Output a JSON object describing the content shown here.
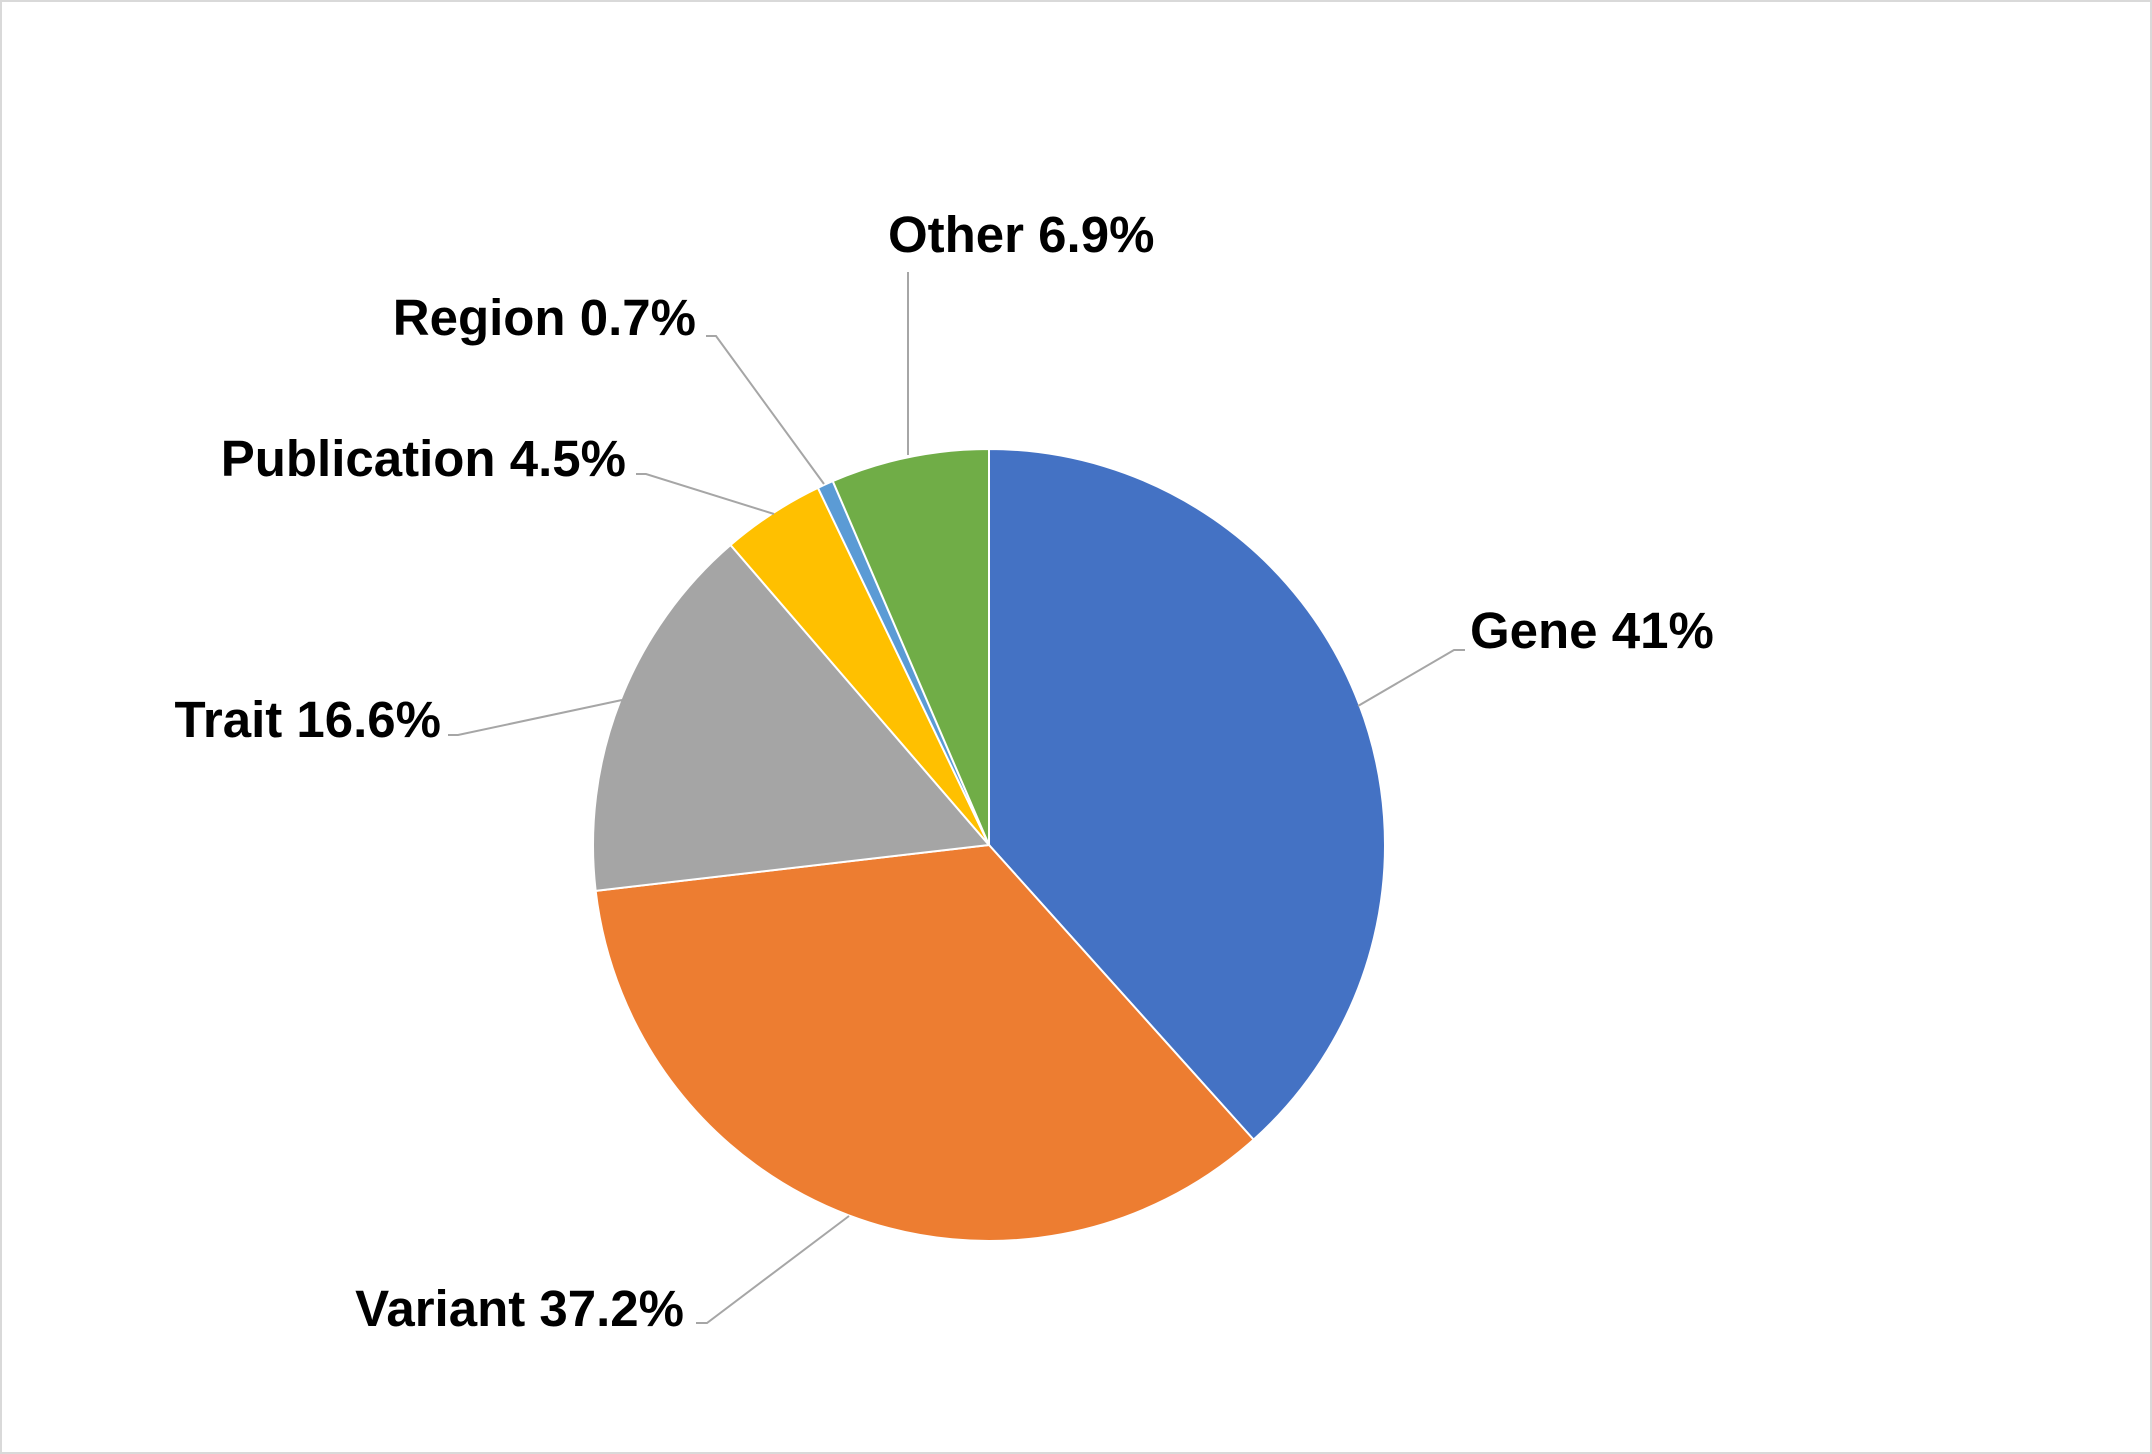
{
  "chart_data": {
    "type": "pie",
    "title": "",
    "slices": [
      {
        "label": "Gene",
        "value": 41,
        "display": "Gene 41%",
        "color": "#4472C4"
      },
      {
        "label": "Variant",
        "value": 37.2,
        "display": "Variant 37.2%",
        "color": "#ED7D31"
      },
      {
        "label": "Trait",
        "value": 16.6,
        "display": "Trait 16.6%",
        "color": "#A5A5A5"
      },
      {
        "label": "Publication",
        "value": 4.5,
        "display": "Publication 4.5%",
        "color": "#FFC000"
      },
      {
        "label": "Region",
        "value": 0.7,
        "display": "Region 0.7%",
        "color": "#5B9BD5"
      },
      {
        "label": "Other",
        "value": 6.9,
        "display": "Other 6.9%",
        "color": "#70AD47"
      }
    ],
    "start_angle": "12 o'clock",
    "direction": "clockwise",
    "legend": "none",
    "data_labels": "outside with leader lines"
  }
}
